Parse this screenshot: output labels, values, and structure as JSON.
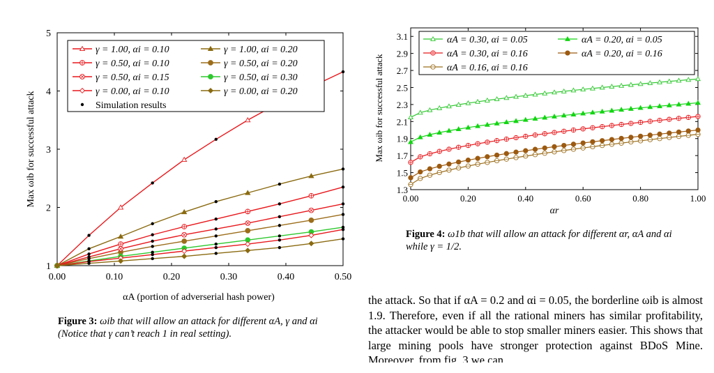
{
  "chart_data": [
    {
      "type": "line",
      "id": "fig3",
      "xlabel": "αA (portion of adverserial hash power)",
      "ylabel": "Max ωib for successful attack",
      "xlim": [
        0,
        0.5
      ],
      "ylim": [
        1,
        5
      ],
      "xticks": [
        "0.00",
        "0.10",
        "0.20",
        "0.30",
        "0.40",
        "0.50"
      ],
      "xtick_values": [
        0,
        0.1,
        0.2,
        0.3,
        0.4,
        0.5
      ],
      "yticks": [
        "1",
        "2",
        "3",
        "4",
        "5"
      ],
      "ytick_values": [
        1,
        2,
        3,
        4,
        5
      ],
      "x": [
        0,
        0.0556,
        0.1111,
        0.1667,
        0.2222,
        0.2778,
        0.3333,
        0.3889,
        0.4444,
        0.5
      ],
      "series": [
        {
          "name": "γ = 1.00, αi = 0.10",
          "color": "#e8171b",
          "marker": "triangle-open",
          "values": [
            1,
            1.52,
            2.0,
            2.42,
            2.82,
            3.17,
            3.5,
            3.8,
            4.07,
            4.33
          ]
        },
        {
          "name": "γ = 1.00, αi = 0.20",
          "color": "#8a6a10",
          "marker": "triangle-filled",
          "values": [
            1,
            1.29,
            1.5,
            1.72,
            1.92,
            2.1,
            2.25,
            2.4,
            2.54,
            2.66
          ]
        },
        {
          "name": "γ = 0.50, αi = 0.10",
          "color": "#e8171b",
          "marker": "circle-plus",
          "values": [
            1,
            1.2,
            1.37,
            1.53,
            1.67,
            1.8,
            1.93,
            2.06,
            2.2,
            2.35
          ]
        },
        {
          "name": "γ = 0.50, αi = 0.20",
          "color": "#9c6d1a",
          "marker": "circle-filled",
          "values": [
            1,
            1.12,
            1.23,
            1.33,
            1.42,
            1.51,
            1.6,
            1.69,
            1.78,
            1.88
          ]
        },
        {
          "name": "γ = 0.50, αi = 0.15",
          "color": "#e8171b",
          "marker": "circle-times",
          "values": [
            1,
            1.15,
            1.29,
            1.42,
            1.53,
            1.63,
            1.73,
            1.84,
            1.95,
            2.06
          ]
        },
        {
          "name": "γ = 0.50, αi = 0.30",
          "color": "#2dc82d",
          "marker": "circle-filled",
          "values": [
            1,
            1.08,
            1.16,
            1.23,
            1.3,
            1.37,
            1.44,
            1.51,
            1.58,
            1.66
          ]
        },
        {
          "name": "γ = 0.00, αi = 0.10",
          "color": "#e8171b",
          "marker": "diamond-open",
          "values": [
            1,
            1.07,
            1.13,
            1.19,
            1.25,
            1.31,
            1.37,
            1.44,
            1.52,
            1.62
          ]
        },
        {
          "name": "γ = 0.00, αi = 0.20",
          "color": "#8a6a10",
          "marker": "diamond-filled",
          "values": [
            1,
            1.04,
            1.08,
            1.12,
            1.16,
            1.21,
            1.26,
            1.31,
            1.38,
            1.46
          ]
        }
      ],
      "simulation_label": "Simulation results",
      "legend_placement": "top-left"
    },
    {
      "type": "line",
      "id": "fig4",
      "xlabel": "αr",
      "ylabel": "Max ωib for successful attack",
      "xlim": [
        0,
        1
      ],
      "ylim": [
        1.3,
        3.2
      ],
      "xticks": [
        "0.00",
        "0.20",
        "0.40",
        "0.60",
        "0.80",
        "1.00"
      ],
      "xtick_values": [
        0,
        0.2,
        0.4,
        0.6,
        0.8,
        1
      ],
      "yticks": [
        "1.3",
        "1.5",
        "1.7",
        "1.9",
        "2.1",
        "2.3",
        "2.5",
        "2.7",
        "2.9",
        "3.1"
      ],
      "ytick_values": [
        1.3,
        1.5,
        1.7,
        1.9,
        2.1,
        2.3,
        2.5,
        2.7,
        2.9,
        3.1
      ],
      "x_points": 31,
      "series": [
        {
          "name": "αA = 0.30, αi = 0.05",
          "color": "#2dc82d",
          "marker": "triangle-open",
          "start": 2.15,
          "end": 2.6
        },
        {
          "name": "αA = 0.20, αi = 0.05",
          "color": "#12d512",
          "marker": "triangle-filled",
          "start": 1.86,
          "end": 2.32
        },
        {
          "name": "αA = 0.30, αi = 0.16",
          "color": "#e8171b",
          "marker": "circle-plus",
          "start": 1.62,
          "end": 2.16
        },
        {
          "name": "αA = 0.20, αi = 0.16",
          "color": "#9c5a10",
          "marker": "circle-filled",
          "start": 1.44,
          "end": 2.0
        },
        {
          "name": "αA = 0.16, αi = 0.16",
          "color": "#9c6d1a",
          "marker": "circle-open",
          "start": 1.36,
          "end": 1.95
        }
      ],
      "legend_placement": "top"
    }
  ],
  "captions": {
    "fig3_label": "Figure 3:",
    "fig3_text": "ωib that will allow an attack for different αA, γ and αi (Notice that γ can’t reach 1 in real setting).",
    "fig4_label": "Figure 4:",
    "fig4_text": "ω1b that will allow an attack for different αr, αA and αi while γ = 1/2."
  },
  "body_text": "the attack. So that if αA = 0.2 and αi = 0.05, the borderline ωib is almost 1.9. Therefore, even if all the rational miners has similar profitability, the attacker would be able to stop smaller miners easier. This shows that large mining pools have stronger protection against BDoS Mine. Moreover, from fig. 3 we can"
}
